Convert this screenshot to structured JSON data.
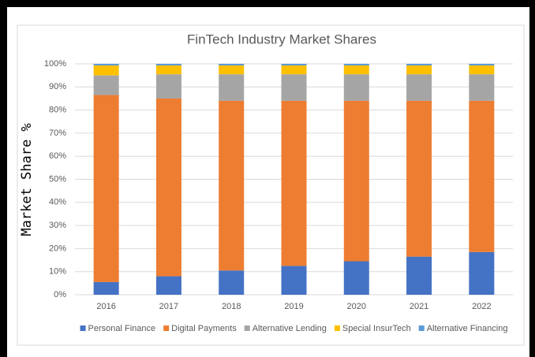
{
  "chart_data": {
    "type": "stacked_bar",
    "title": "FinTech Industry Market Shares",
    "y_label": "Market Share %",
    "categories": [
      "2016",
      "2017",
      "2018",
      "2019",
      "2020",
      "2021",
      "2022"
    ],
    "series": [
      {
        "name": "Personal Finance",
        "color": "#4472c4",
        "values": [
          5.5,
          8,
          10.5,
          12.5,
          14.5,
          16.5,
          18.5
        ]
      },
      {
        "name": "Digital Payments",
        "color": "#ed7d31",
        "values": [
          81,
          77,
          73.5,
          71.5,
          69.5,
          67.5,
          65.5
        ]
      },
      {
        "name": "Alternative Lending",
        "color": "#a5a5a5",
        "values": [
          8.5,
          10.5,
          11.5,
          11.5,
          11.5,
          11.5,
          11.5
        ]
      },
      {
        "name": "Special InsurTech",
        "color": "#ffc000",
        "values": [
          4.3,
          3.8,
          3.8,
          3.8,
          3.8,
          3.8,
          3.8
        ]
      },
      {
        "name": "Alternative Financing",
        "color": "#5b9bd5",
        "values": [
          0.7,
          0.7,
          0.7,
          0.7,
          0.7,
          0.7,
          0.7
        ]
      }
    ],
    "ylim": [
      0,
      100
    ],
    "yticks": [
      {
        "value": 0,
        "label": "0%"
      },
      {
        "value": 10,
        "label": "10%"
      },
      {
        "value": 20,
        "label": "20%"
      },
      {
        "value": 30,
        "label": "30%"
      },
      {
        "value": 40,
        "label": "40%"
      },
      {
        "value": 50,
        "label": "50%"
      },
      {
        "value": 60,
        "label": "60%"
      },
      {
        "value": 70,
        "label": "70%"
      },
      {
        "value": 80,
        "label": "80%"
      },
      {
        "value": 90,
        "label": "90%"
      },
      {
        "value": 100,
        "label": "100%"
      }
    ],
    "grid": true,
    "legend": "bottom"
  }
}
